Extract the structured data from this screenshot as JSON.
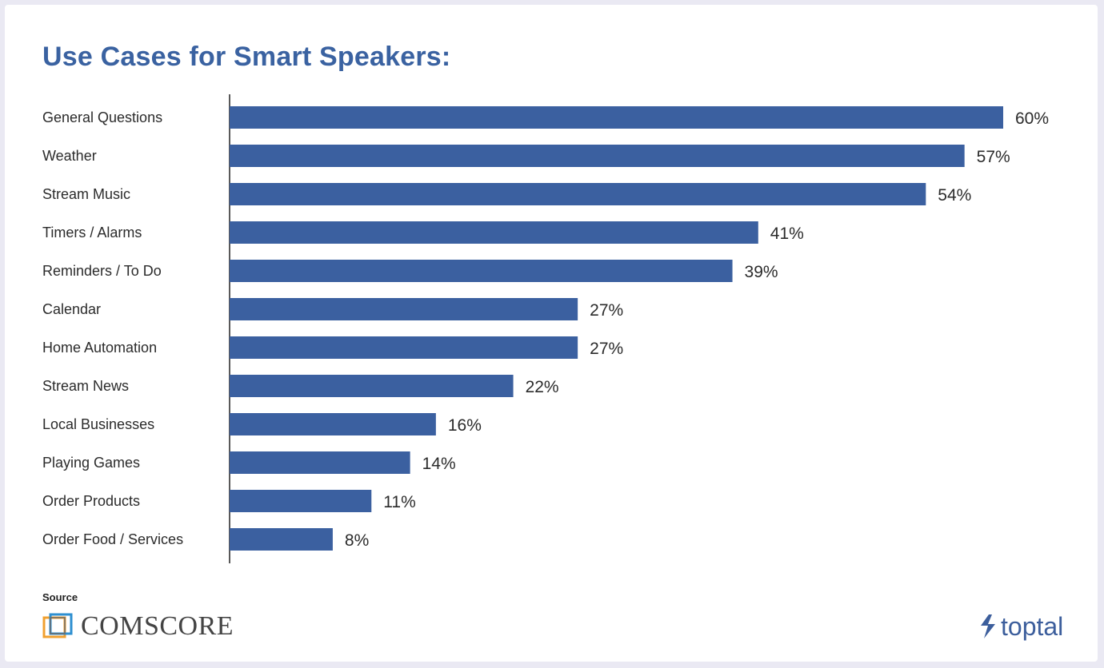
{
  "chart_data": {
    "type": "bar",
    "orientation": "horizontal",
    "title": "Use Cases for Smart Speakers:",
    "categories": [
      "General Questions",
      "Weather",
      "Stream Music",
      "Timers / Alarms",
      "Reminders / To Do",
      "Calendar",
      "Home Automation",
      "Stream News",
      "Local Businesses",
      "Playing Games",
      "Order Products",
      "Order Food / Services"
    ],
    "values": [
      60,
      57,
      54,
      41,
      39,
      27,
      27,
      22,
      16,
      14,
      11,
      8
    ],
    "value_labels": [
      "60%",
      "57%",
      "54%",
      "41%",
      "39%",
      "27%",
      "27%",
      "22%",
      "16%",
      "14%",
      "11%",
      "8%"
    ],
    "xlim": [
      0,
      60
    ],
    "grid": false,
    "bar_color": "#3b60a0"
  },
  "footer": {
    "source_label": "Source",
    "source_name": "comScore",
    "source_logo_text": "COMSCORE",
    "brand_name": "toptal"
  },
  "colors": {
    "title": "#3a62a1",
    "bar": "#3b60a0",
    "background": "#eae9f3",
    "card": "#ffffff"
  },
  "icons": {
    "source_logo": "comscore-logo-icon",
    "brand_logo": "toptal-logo-icon"
  }
}
